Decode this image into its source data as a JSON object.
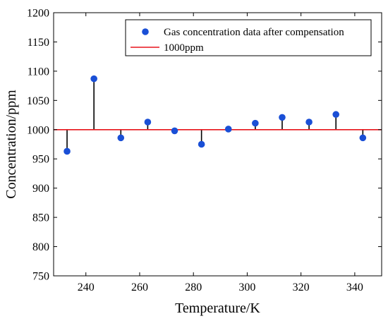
{
  "chart_data": {
    "type": "scatter",
    "xlabel": "Temperature/K",
    "ylabel": "Concentration/ppm",
    "xlim": [
      228,
      350
    ],
    "ylim": [
      750,
      1200
    ],
    "xticks": [
      240,
      260,
      280,
      300,
      320,
      340
    ],
    "yticks": [
      750,
      800,
      850,
      900,
      950,
      1000,
      1050,
      1100,
      1150,
      1200
    ],
    "grid": false,
    "legend_position": "top-right",
    "reference_line": {
      "name": "1000ppm",
      "value": 1000,
      "color": "#e8141b"
    },
    "series": [
      {
        "name": "Gas concentration data after compensation",
        "color": "#1a4fd6",
        "x": [
          233,
          243,
          253,
          263,
          273,
          283,
          293,
          303,
          313,
          323,
          333,
          343
        ],
        "y": [
          963,
          1087,
          986,
          1013,
          998,
          975,
          1001,
          1011,
          1021,
          1013,
          1026,
          986
        ]
      }
    ],
    "stem_color": "#000000"
  }
}
